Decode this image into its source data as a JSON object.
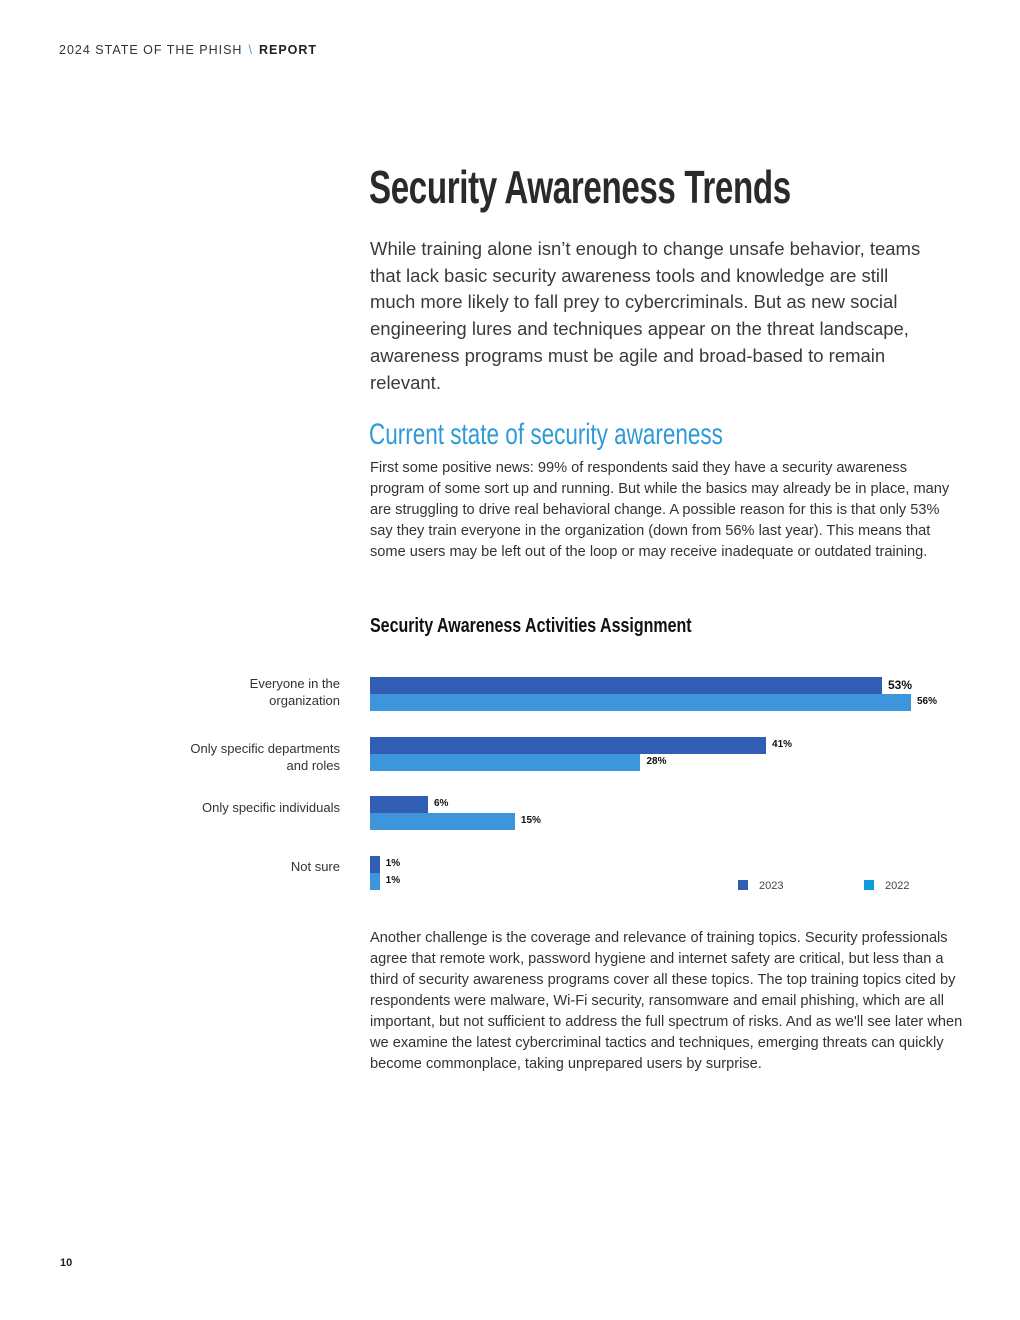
{
  "header": {
    "title": "2024 STATE OF THE PHISH",
    "separator": "\\",
    "section": "REPORT"
  },
  "page_title": "Security Awareness Trends",
  "lead": "While training alone isn’t enough to change unsafe behavior, teams that lack basic security awareness tools and knowledge are still much more likely to fall prey to cybercriminals.  But as new social engineering lures and techniques appear on the threat landscape, awareness programs must be agile and broad-based to remain relevant.",
  "subheading": "Current state of security awareness",
  "para1": "First some positive news: 99% of respondents said they have a security awareness program of some sort up and running. But while the basics may already be in place, many are struggling to drive real behavioral change. A possible reason for this is that only 53% say they train everyone in the organization (down from 56% last year). This means that some users may be left out of the loop or may receive inadequate or outdated training.",
  "para2": "Another challenge is the coverage and relevance of training topics. Security professionals agree that remote work, password hygiene and internet safety are critical, but less than a third of security awareness programs cover all these topics. The top training topics cited by respondents were malware, Wi-Fi security, ransomware and email phishing, which are all important, but not sufficient to address the full spectrum of risks. And as we'll see later when we examine the latest cybercriminal tactics and techniques, emerging threats can quickly become commonplace, taking unprepared users by surprise.",
  "page_number": "10",
  "chart_data": {
    "type": "bar",
    "orientation": "horizontal",
    "title": "Security Awareness Activities Assignment",
    "categories": [
      "Everyone in the organization",
      "Only specific departments and roles",
      "Only specific individuals",
      "Not sure"
    ],
    "series": [
      {
        "name": "2023",
        "color": "#325db5",
        "values": [
          53,
          41,
          6,
          1
        ],
        "labels": [
          "53%",
          "41%",
          "6%",
          "1%"
        ]
      },
      {
        "name": "2022",
        "color": "#3d96dc",
        "values": [
          56,
          28,
          15,
          1
        ],
        "labels": [
          "56%",
          "28%",
          "15%",
          "1%"
        ]
      }
    ],
    "legend": {
      "placement": "bottom-right",
      "items": [
        "2023",
        "2022"
      ],
      "colors": [
        "#325db5",
        "#0f9ad8"
      ]
    },
    "xlim": [
      0,
      100
    ],
    "grid": false
  }
}
